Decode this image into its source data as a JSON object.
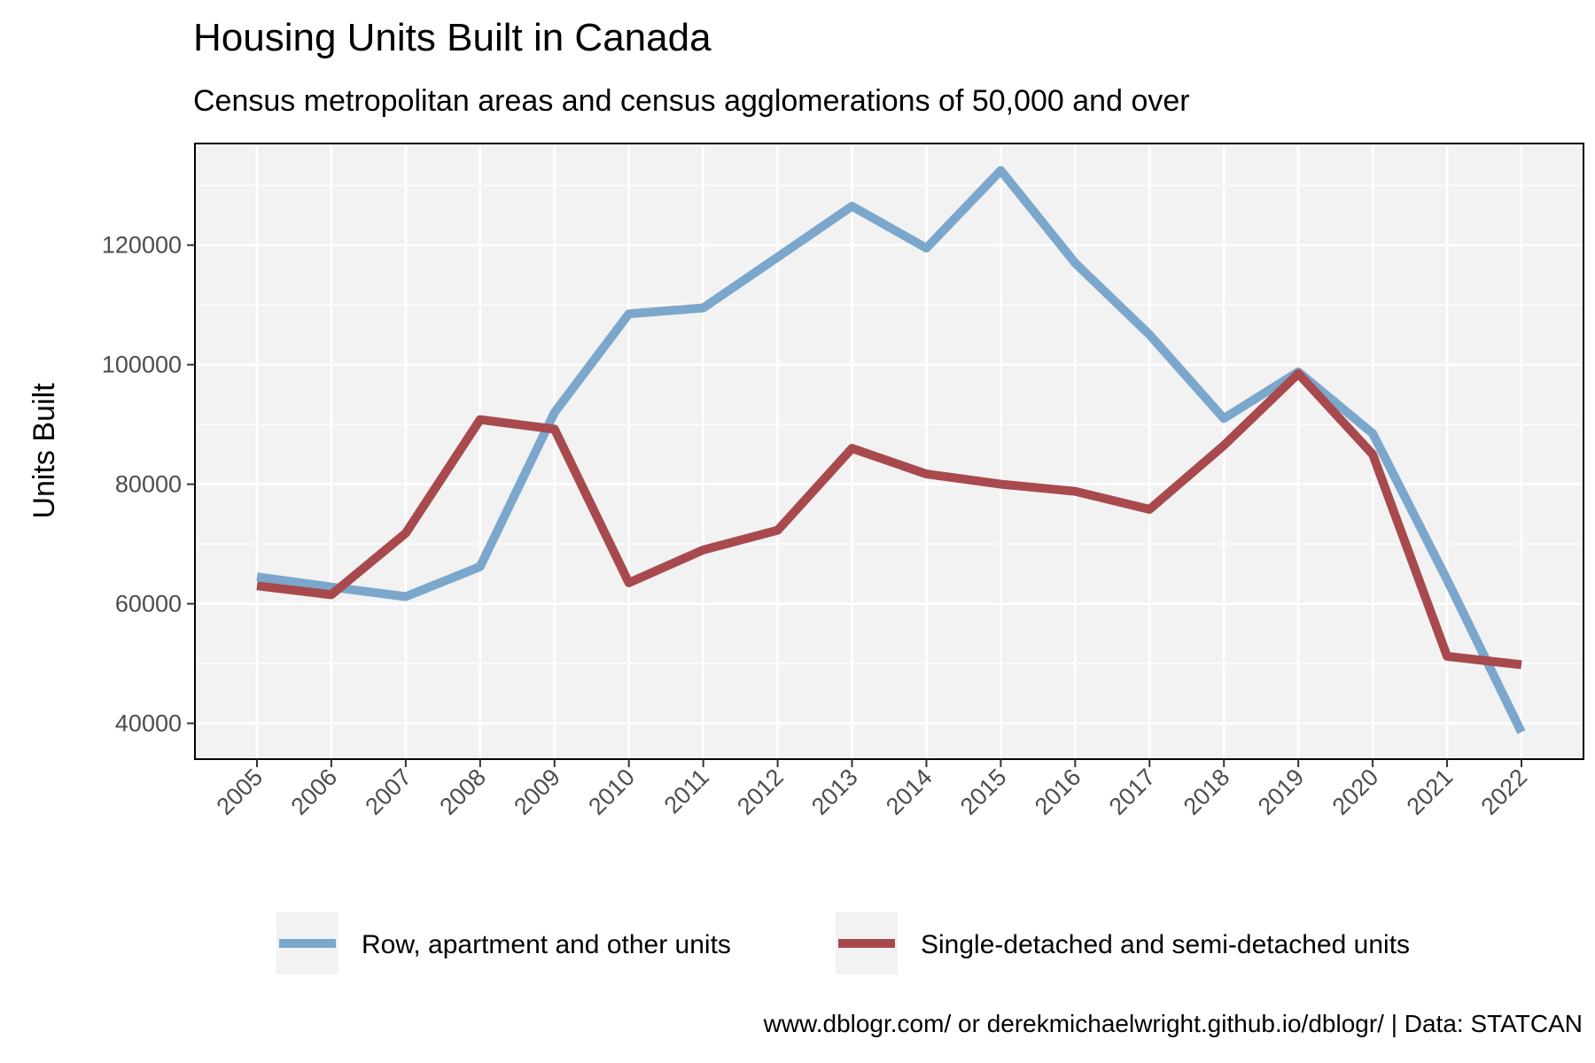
{
  "chart_data": {
    "type": "line",
    "title": "Housing Units Built in Canada",
    "subtitle": "Census metropolitan areas and census agglomerations of 50,000 and over",
    "xlabel": "",
    "ylabel": "Units Built",
    "caption": "www.dblogr.com/ or derekmichaelwright.github.io/dblogr/ | Data: STATCAN",
    "x": [
      "2005",
      "2006",
      "2007",
      "2008",
      "2009",
      "2010",
      "2011",
      "2012",
      "2013",
      "2014",
      "2015",
      "2016",
      "2017",
      "2018",
      "2019",
      "2020",
      "2021",
      "2022"
    ],
    "yticks": [
      40000,
      60000,
      80000,
      100000,
      120000
    ],
    "ylim": [
      34000,
      137000
    ],
    "grid": true,
    "legend_position": "bottom",
    "series": [
      {
        "name": "Row, apartment and other units",
        "color": "#7ba7cc",
        "values": [
          64500,
          62800,
          61200,
          66200,
          92000,
          108500,
          109500,
          118000,
          126500,
          119500,
          132500,
          117000,
          105000,
          91000,
          98800,
          88500,
          64000,
          38500
        ]
      },
      {
        "name": "Single-detached and semi-detached units",
        "color": "#a84a4d",
        "values": [
          63000,
          61500,
          71800,
          90800,
          89200,
          63500,
          69000,
          72300,
          86000,
          81700,
          80000,
          78800,
          75800,
          86500,
          98500,
          85000,
          51200,
          49800
        ]
      }
    ]
  }
}
